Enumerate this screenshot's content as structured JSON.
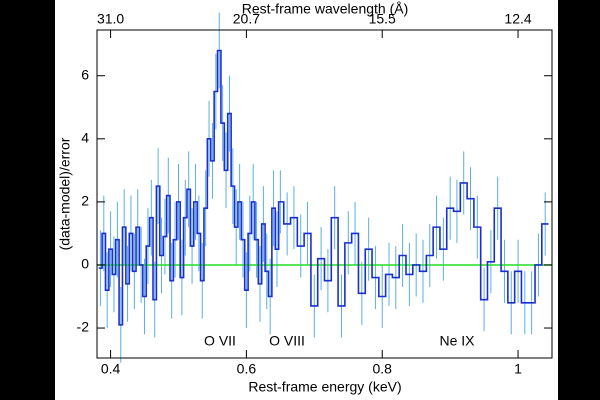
{
  "chart_data": {
    "type": "step",
    "xlabel": "Rest-frame energy (keV)",
    "x2label": "Rest-frame wavelength (Å)",
    "ylabel": "(data-model)/error",
    "xlim": [
      0.38,
      1.05
    ],
    "ylim": [
      -2.95,
      7.45
    ],
    "xticks": [
      0.4,
      0.6,
      0.8,
      1
    ],
    "x2ticks": [
      {
        "value": 0.4,
        "label": "31.0"
      },
      {
        "value": 0.6,
        "label": "20.7"
      },
      {
        "value": 0.8,
        "label": "15.5"
      },
      {
        "value": 1.0,
        "label": "12.4"
      }
    ],
    "yticks": [
      -2,
      0,
      2,
      4,
      6
    ],
    "model_level": 0,
    "model_color": "#22dd22",
    "annotations": [
      "O VII",
      "O VIII",
      "Ne IX"
    ],
    "series": [
      {
        "color": "#1a2fd0",
        "error_color": "#5aaee8",
        "x": [
          0.385,
          0.39,
          0.395,
          0.4,
          0.405,
          0.41,
          0.415,
          0.42,
          0.425,
          0.43,
          0.435,
          0.44,
          0.445,
          0.45,
          0.455,
          0.46,
          0.465,
          0.47,
          0.475,
          0.48,
          0.485,
          0.49,
          0.495,
          0.5,
          0.505,
          0.51,
          0.515,
          0.52,
          0.525,
          0.53,
          0.535,
          0.54,
          0.545,
          0.55,
          0.555,
          0.56,
          0.565,
          0.57,
          0.575,
          0.58,
          0.585,
          0.59,
          0.595,
          0.6,
          0.605,
          0.61,
          0.615,
          0.62,
          0.625,
          0.63,
          0.635,
          0.64,
          0.645,
          0.65,
          0.66,
          0.67,
          0.68,
          0.69,
          0.7,
          0.71,
          0.72,
          0.73,
          0.74,
          0.75,
          0.76,
          0.77,
          0.78,
          0.79,
          0.8,
          0.81,
          0.82,
          0.83,
          0.84,
          0.85,
          0.86,
          0.87,
          0.88,
          0.89,
          0.9,
          0.91,
          0.92,
          0.93,
          0.94,
          0.95,
          0.96,
          0.97,
          0.98,
          0.99,
          1.0,
          1.01,
          1.02,
          1.03,
          1.04
        ],
        "values": [
          -0.1,
          1.0,
          -0.8,
          0.5,
          -0.3,
          0.8,
          -1.9,
          1.2,
          -0.6,
          1.0,
          -0.2,
          1.2,
          0.0,
          -1.0,
          0.6,
          1.5,
          -1.1,
          2.5,
          0.3,
          0.9,
          2.2,
          -0.5,
          0.8,
          2.0,
          -0.4,
          1.5,
          2.4,
          0.6,
          2.0,
          1.0,
          -0.5,
          1.8,
          4.0,
          3.3,
          5.5,
          6.8,
          4.5,
          3.0,
          4.8,
          2.5,
          1.2,
          2.0,
          0.8,
          -0.8,
          1.0,
          2.0,
          0.8,
          -0.6,
          1.3,
          -0.2,
          -1.0,
          1.8,
          0.5,
          2.0,
          1.3,
          1.5,
          0.6,
          1.0,
          -1.3,
          0.2,
          -0.5,
          1.5,
          -1.3,
          0.7,
          1.0,
          -0.9,
          0.5,
          -0.4,
          -1.0,
          -0.3,
          -0.4,
          0.3,
          -0.3,
          0.0,
          -0.2,
          0.3,
          1.2,
          0.5,
          1.8,
          1.7,
          2.6,
          2.1,
          1.2,
          -1.1,
          0.1,
          1.8,
          -0.2,
          -1.2,
          -0.2,
          -1.2,
          -1.2,
          0.0,
          1.3
        ],
        "errors": [
          1.2,
          1.2,
          1.2,
          1.2,
          1.2,
          1.2,
          1.2,
          1.2,
          1.2,
          1.2,
          1.2,
          1.2,
          1.2,
          1.2,
          1.2,
          1.2,
          1.2,
          1.2,
          1.2,
          1.2,
          1.2,
          1.2,
          1.2,
          1.2,
          1.2,
          1.2,
          1.2,
          1.2,
          1.2,
          1.2,
          1.2,
          1.2,
          1.2,
          1.2,
          1.2,
          1.2,
          1.2,
          1.2,
          1.2,
          1.2,
          1.2,
          1.2,
          1.2,
          1.2,
          1.2,
          1.2,
          1.2,
          1.2,
          1.2,
          1.2,
          1.2,
          1.2,
          1.2,
          1.0,
          1.0,
          1.0,
          1.0,
          1.0,
          1.0,
          1.0,
          1.0,
          1.0,
          1.0,
          1.0,
          1.0,
          1.0,
          1.0,
          1.0,
          1.0,
          1.0,
          1.0,
          1.0,
          1.0,
          1.0,
          1.0,
          1.0,
          1.0,
          1.0,
          1.0,
          1.0,
          1.0,
          1.0,
          1.0,
          1.0,
          1.0,
          1.0,
          1.0,
          1.0,
          1.0,
          1.0,
          1.0,
          1.0,
          1.0
        ]
      }
    ]
  }
}
